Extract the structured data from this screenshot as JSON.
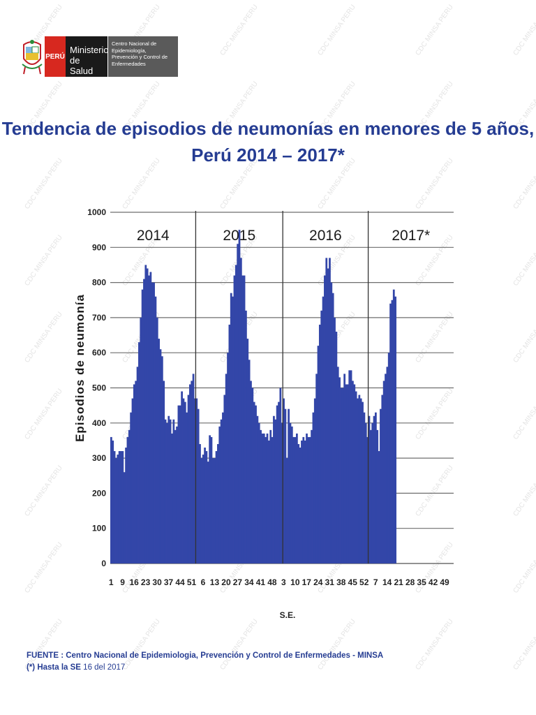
{
  "header": {
    "country": "PERÚ",
    "ministry_line1": "Ministerio",
    "ministry_line2": "de Salud",
    "center_line1": "Centro Nacional de Epidemiología,",
    "center_line2": "Prevención y Control de",
    "center_line3": "Enfermedades"
  },
  "watermark_text": "CDC MINSA PERU",
  "colors": {
    "bar": "#3346a8",
    "title": "#253c92",
    "brand_red": "#d7281f"
  },
  "footer": {
    "fuente": "FUENTE : Centro Nacional de Epidemiologia, Prevención y Control de Enfermedades - MINSA",
    "note_prefix": "(*) Hasta la SE ",
    "note_suffix": "16 del 2017"
  },
  "chart_data": {
    "type": "bar",
    "title_line1": "Tendencia de episodios de neumonías en menores de 5 años,",
    "title_line2": "Perú 2014 – 2017*",
    "xlabel": "S.E.",
    "ylabel": "Episodios de neumonía",
    "ylim": [
      0,
      1000
    ],
    "yticks": [
      0,
      100,
      200,
      300,
      400,
      500,
      600,
      700,
      800,
      900,
      1000
    ],
    "grid": true,
    "xtick_labels": [
      "1",
      "9",
      "16",
      "23",
      "30",
      "37",
      "44",
      "51",
      "6",
      "13",
      "20",
      "27",
      "34",
      "41",
      "48",
      "3",
      "10",
      "17",
      "24",
      "31",
      "38",
      "45",
      "52",
      "7",
      "14",
      "21",
      "28",
      "35",
      "42",
      "49"
    ],
    "periods": [
      {
        "label": "2014",
        "weeks": 52
      },
      {
        "label": "2015",
        "weeks": 53
      },
      {
        "label": "2016",
        "weeks": 52
      },
      {
        "label": "2017*",
        "weeks": 52
      }
    ],
    "series": [
      {
        "values": [
          360,
          350,
          320,
          300,
          310,
          320,
          320,
          320,
          260,
          330,
          360,
          380,
          430,
          470,
          510,
          520,
          560,
          630,
          700,
          780,
          810,
          850,
          840,
          820,
          830,
          800,
          800,
          760,
          700,
          640,
          610,
          590,
          520,
          410,
          400,
          420,
          410,
          370,
          410,
          380,
          390,
          450,
          450,
          490,
          470,
          460,
          430,
          480,
          510,
          520,
          540,
          470,
          470,
          440,
          340,
          300,
          310,
          330,
          320,
          290,
          365,
          360,
          300,
          300,
          320,
          340,
          390,
          410,
          430,
          480,
          540,
          600,
          680,
          770,
          760,
          820,
          850,
          910,
          950,
          870,
          820,
          820,
          720,
          640,
          580,
          520,
          500,
          460,
          450,
          420,
          400,
          380,
          370,
          370,
          360,
          370,
          350,
          380,
          360,
          420,
          410,
          450,
          460,
          500,
          400,
          470,
          440,
          300,
          440,
          400,
          390,
          360,
          360,
          370,
          340,
          330,
          350,
          360,
          350,
          370,
          360,
          360,
          380,
          430,
          470,
          540,
          620,
          680,
          720,
          760,
          820,
          870,
          840,
          870,
          800,
          770,
          700,
          660,
          560,
          530,
          500,
          500,
          540,
          510,
          510,
          550,
          550,
          520,
          510,
          490,
          470,
          480,
          470,
          460,
          430,
          400,
          360,
          420,
          380,
          400,
          420,
          430,
          380,
          320,
          440,
          480,
          520,
          540,
          560,
          600,
          740,
          750,
          780,
          760
        ]
      }
    ]
  }
}
